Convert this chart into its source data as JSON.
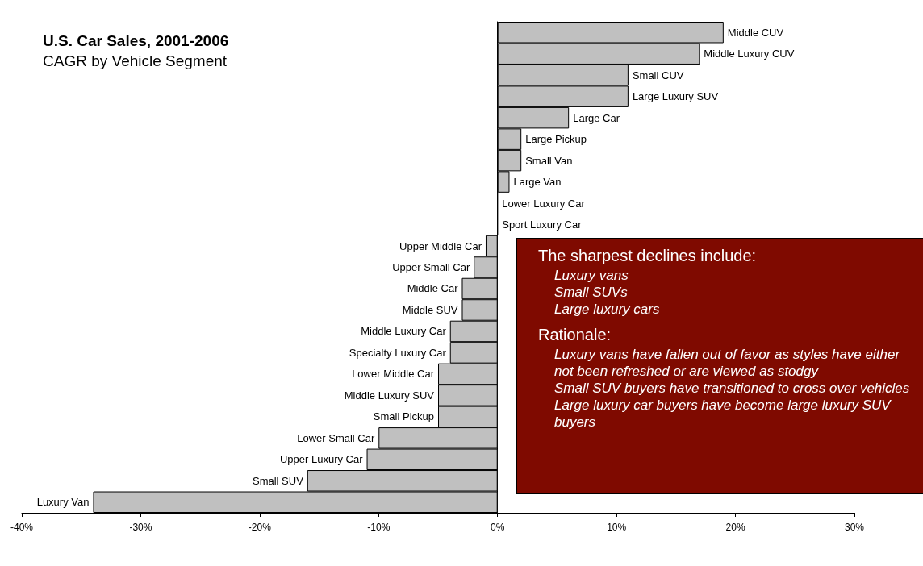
{
  "chart_data": {
    "type": "bar",
    "orientation": "horizontal",
    "title": "U.S. Car Sales, 2001-2006",
    "subtitle": "CAGR by Vehicle Segment",
    "categories": [
      "Middle CUV",
      "Middle Luxury CUV",
      "Small CUV",
      "Large Luxury SUV",
      "Large Car",
      "Large Pickup",
      "Small Van",
      "Large Van",
      "Lower Luxury Car",
      "Sport Luxury Car",
      "Upper Middle Car",
      "Upper Small Car",
      "Middle Car",
      "Middle SUV",
      "Middle Luxury Car",
      "Specialty Luxury Car",
      "Lower Middle Car",
      "Middle Luxury SUV",
      "Small Pickup",
      "Lower Small Car",
      "Upper Luxury Car",
      "Small SUV",
      "Luxury Van"
    ],
    "values": [
      19,
      17,
      11,
      11,
      6,
      2,
      2,
      1,
      0,
      0,
      -1,
      -2,
      -3,
      -3,
      -4,
      -4,
      -5,
      -5,
      -5,
      -10,
      -11,
      -16,
      -34
    ],
    "color": "#c0c0c0",
    "xlim": [
      -40,
      30
    ],
    "xticks": [
      {
        "value": -40,
        "label": "-40%"
      },
      {
        "value": -30,
        "label": "-30%"
      },
      {
        "value": -20,
        "label": "-20%"
      },
      {
        "value": -10,
        "label": "-10%"
      },
      {
        "value": 0,
        "label": "0%"
      },
      {
        "value": 10,
        "label": "10%"
      },
      {
        "value": 20,
        "label": "20%"
      },
      {
        "value": 30,
        "label": "30%"
      }
    ],
    "grid": false,
    "annotations": [
      "The sharpest declines include:",
      "Luxury vans",
      "Small SUVs",
      "Large luxury cars",
      "Rationale:",
      "Luxury vans have fallen out of favor as styles have either not been refreshed or are viewed as stodgy",
      "Small SUV buyers have transitioned to cross over vehicles",
      "Large luxury car buyers have become large luxury SUV buyers"
    ]
  }
}
